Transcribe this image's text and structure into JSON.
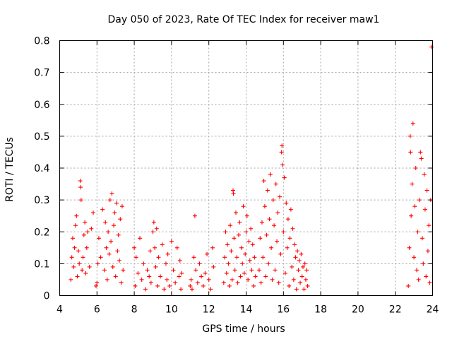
{
  "chart_data": {
    "type": "scatter",
    "title": "Day 050 of 2023, Rate Of TEC Index for receiver maw1",
    "xlabel": "GPS time / hours",
    "ylabel": "ROTI / TECUs",
    "xlim": [
      4,
      24
    ],
    "ylim": [
      0,
      0.8
    ],
    "x_ticks": [
      4,
      6,
      8,
      10,
      12,
      14,
      16,
      18,
      20,
      22,
      24
    ],
    "y_ticks": [
      0,
      0.1,
      0.2,
      0.3,
      0.4,
      0.5,
      0.6,
      0.7,
      0.8
    ],
    "x_tick_labels": [
      "4",
      "6",
      "8",
      "10",
      "12",
      "14",
      "16",
      "18",
      "20",
      "22",
      "24"
    ],
    "y_tick_labels": [
      "0",
      "0.1",
      "0.2",
      "0.3",
      "0.4",
      "0.5",
      "0.6",
      "0.7",
      "0.8"
    ],
    "grid": true,
    "marker": "+",
    "color": "#ff0000",
    "series": [
      {
        "values": [
          [
            4.6,
            0.05
          ],
          [
            4.65,
            0.12
          ],
          [
            4.7,
            0.18
          ],
          [
            4.75,
            0.09
          ],
          [
            4.8,
            0.15
          ],
          [
            4.85,
            0.22
          ],
          [
            4.9,
            0.25
          ],
          [
            4.95,
            0.06
          ],
          [
            5.0,
            0.14
          ],
          [
            5.05,
            0.1
          ],
          [
            5.1,
            0.36
          ],
          [
            5.12,
            0.34
          ],
          [
            5.15,
            0.3
          ],
          [
            5.2,
            0.08
          ],
          [
            5.25,
            0.12
          ],
          [
            5.3,
            0.19
          ],
          [
            5.35,
            0.23
          ],
          [
            5.4,
            0.07
          ],
          [
            5.45,
            0.15
          ],
          [
            5.5,
            0.2
          ],
          [
            5.6,
            0.09
          ],
          [
            5.7,
            0.21
          ],
          [
            5.8,
            0.26
          ],
          [
            5.95,
            0.03
          ],
          [
            6.0,
            0.04
          ],
          [
            6.05,
            0.1
          ],
          [
            6.1,
            0.18
          ],
          [
            6.2,
            0.12
          ],
          [
            6.3,
            0.27
          ],
          [
            6.4,
            0.08
          ],
          [
            6.45,
            0.23
          ],
          [
            6.5,
            0.15
          ],
          [
            6.55,
            0.05
          ],
          [
            6.6,
            0.2
          ],
          [
            6.65,
            0.13
          ],
          [
            6.7,
            0.3
          ],
          [
            6.75,
            0.17
          ],
          [
            6.8,
            0.32
          ],
          [
            6.85,
            0.09
          ],
          [
            6.9,
            0.22
          ],
          [
            6.95,
            0.26
          ],
          [
            7.0,
            0.06
          ],
          [
            7.05,
            0.29
          ],
          [
            7.1,
            0.14
          ],
          [
            7.15,
            0.19
          ],
          [
            7.2,
            0.11
          ],
          [
            7.25,
            0.24
          ],
          [
            7.3,
            0.04
          ],
          [
            7.35,
            0.28
          ],
          [
            7.4,
            0.08
          ],
          [
            8.0,
            0.15
          ],
          [
            8.05,
            0.03
          ],
          [
            8.1,
            0.12
          ],
          [
            8.2,
            0.07
          ],
          [
            8.3,
            0.18
          ],
          [
            8.4,
            0.05
          ],
          [
            8.5,
            0.1
          ],
          [
            8.6,
            0.02
          ],
          [
            8.7,
            0.08
          ],
          [
            8.8,
            0.06
          ],
          [
            8.85,
            0.14
          ],
          [
            8.9,
            0.04
          ],
          [
            9.0,
            0.2
          ],
          [
            9.05,
            0.23
          ],
          [
            9.1,
            0.15
          ],
          [
            9.15,
            0.09
          ],
          [
            9.2,
            0.21
          ],
          [
            9.25,
            0.03
          ],
          [
            9.3,
            0.12
          ],
          [
            9.4,
            0.06
          ],
          [
            9.5,
            0.16
          ],
          [
            9.6,
            0.02
          ],
          [
            9.7,
            0.1
          ],
          [
            9.75,
            0.05
          ],
          [
            9.8,
            0.13
          ],
          [
            9.9,
            0.03
          ],
          [
            10.0,
            0.17
          ],
          [
            10.1,
            0.08
          ],
          [
            10.2,
            0.04
          ],
          [
            10.3,
            0.15
          ],
          [
            10.4,
            0.06
          ],
          [
            10.45,
            0.11
          ],
          [
            10.5,
            0.02
          ],
          [
            10.55,
            0.07
          ],
          [
            11.0,
            0.03
          ],
          [
            11.05,
            0.05
          ],
          [
            11.1,
            0.02
          ],
          [
            11.2,
            0.12
          ],
          [
            11.25,
            0.25
          ],
          [
            11.3,
            0.08
          ],
          [
            11.4,
            0.04
          ],
          [
            11.5,
            0.1
          ],
          [
            11.6,
            0.06
          ],
          [
            11.7,
            0.03
          ],
          [
            11.8,
            0.07
          ],
          [
            11.9,
            0.13
          ],
          [
            12.0,
            0.05
          ],
          [
            12.1,
            0.02
          ],
          [
            12.2,
            0.15
          ],
          [
            12.25,
            0.09
          ],
          [
            12.8,
            0.04
          ],
          [
            12.85,
            0.12
          ],
          [
            12.9,
            0.2
          ],
          [
            12.95,
            0.07
          ],
          [
            13.0,
            0.16
          ],
          [
            13.05,
            0.1
          ],
          [
            13.1,
            0.03
          ],
          [
            13.15,
            0.22
          ],
          [
            13.2,
            0.14
          ],
          [
            13.25,
            0.05
          ],
          [
            13.3,
            0.33
          ],
          [
            13.32,
            0.32
          ],
          [
            13.35,
            0.18
          ],
          [
            13.4,
            0.08
          ],
          [
            13.45,
            0.26
          ],
          [
            13.5,
            0.12
          ],
          [
            13.55,
            0.04
          ],
          [
            13.6,
            0.19
          ],
          [
            13.65,
            0.23
          ],
          [
            13.7,
            0.06
          ],
          [
            13.75,
            0.15
          ],
          [
            13.8,
            0.1
          ],
          [
            13.85,
            0.28
          ],
          [
            13.9,
            0.07
          ],
          [
            13.95,
            0.13
          ],
          [
            14.0,
            0.2
          ],
          [
            14.05,
            0.25
          ],
          [
            14.1,
            0.05
          ],
          [
            14.15,
            0.17
          ],
          [
            14.2,
            0.11
          ],
          [
            14.25,
            0.21
          ],
          [
            14.3,
            0.08
          ],
          [
            14.35,
            0.16
          ],
          [
            14.4,
            0.03
          ],
          [
            14.45,
            0.12
          ],
          [
            14.5,
            0.06
          ],
          [
            14.7,
            0.08
          ],
          [
            14.75,
            0.18
          ],
          [
            14.8,
            0.04
          ],
          [
            14.85,
            0.23
          ],
          [
            14.9,
            0.12
          ],
          [
            14.95,
            0.36
          ],
          [
            15.0,
            0.28
          ],
          [
            15.05,
            0.06
          ],
          [
            15.1,
            0.19
          ],
          [
            15.15,
            0.33
          ],
          [
            15.2,
            0.1
          ],
          [
            15.25,
            0.24
          ],
          [
            15.3,
            0.38
          ],
          [
            15.35,
            0.15
          ],
          [
            15.4,
            0.05
          ],
          [
            15.45,
            0.3
          ],
          [
            15.5,
            0.22
          ],
          [
            15.55,
            0.08
          ],
          [
            15.6,
            0.35
          ],
          [
            15.65,
            0.17
          ],
          [
            15.7,
            0.26
          ],
          [
            15.75,
            0.04
          ],
          [
            15.8,
            0.31
          ],
          [
            15.85,
            0.13
          ],
          [
            15.9,
            0.45
          ],
          [
            15.92,
            0.47
          ],
          [
            15.95,
            0.41
          ],
          [
            16.0,
            0.2
          ],
          [
            16.05,
            0.37
          ],
          [
            16.1,
            0.07
          ],
          [
            16.15,
            0.29
          ],
          [
            16.2,
            0.15
          ],
          [
            16.25,
            0.24
          ],
          [
            16.3,
            0.03
          ],
          [
            16.35,
            0.18
          ],
          [
            16.4,
            0.27
          ],
          [
            16.45,
            0.09
          ],
          [
            16.5,
            0.21
          ],
          [
            16.55,
            0.05
          ],
          [
            16.6,
            0.16
          ],
          [
            16.65,
            0.12
          ],
          [
            16.7,
            0.02
          ],
          [
            16.75,
            0.14
          ],
          [
            16.8,
            0.08
          ],
          [
            16.85,
            0.11
          ],
          [
            16.9,
            0.04
          ],
          [
            16.95,
            0.13
          ],
          [
            17.0,
            0.06
          ],
          [
            17.05,
            0.09
          ],
          [
            17.1,
            0.02
          ],
          [
            17.15,
            0.1
          ],
          [
            17.2,
            0.05
          ],
          [
            17.25,
            0.08
          ],
          [
            17.3,
            0.03
          ],
          [
            22.7,
            0.03
          ],
          [
            22.75,
            0.15
          ],
          [
            22.8,
            0.5
          ],
          [
            22.82,
            0.45
          ],
          [
            22.85,
            0.25
          ],
          [
            22.9,
            0.35
          ],
          [
            22.95,
            0.54
          ],
          [
            23.0,
            0.12
          ],
          [
            23.05,
            0.28
          ],
          [
            23.1,
            0.4
          ],
          [
            23.15,
            0.08
          ],
          [
            23.2,
            0.2
          ],
          [
            23.25,
            0.05
          ],
          [
            23.3,
            0.3
          ],
          [
            23.35,
            0.45
          ],
          [
            23.4,
            0.43
          ],
          [
            23.45,
            0.18
          ],
          [
            23.5,
            0.1
          ],
          [
            23.55,
            0.38
          ],
          [
            23.6,
            0.27
          ],
          [
            23.65,
            0.06
          ],
          [
            23.7,
            0.33
          ],
          [
            23.75,
            0.14
          ],
          [
            23.8,
            0.22
          ],
          [
            23.85,
            0.04
          ],
          [
            23.9,
            0.3
          ],
          [
            23.95,
            0.78
          ]
        ]
      }
    ]
  }
}
